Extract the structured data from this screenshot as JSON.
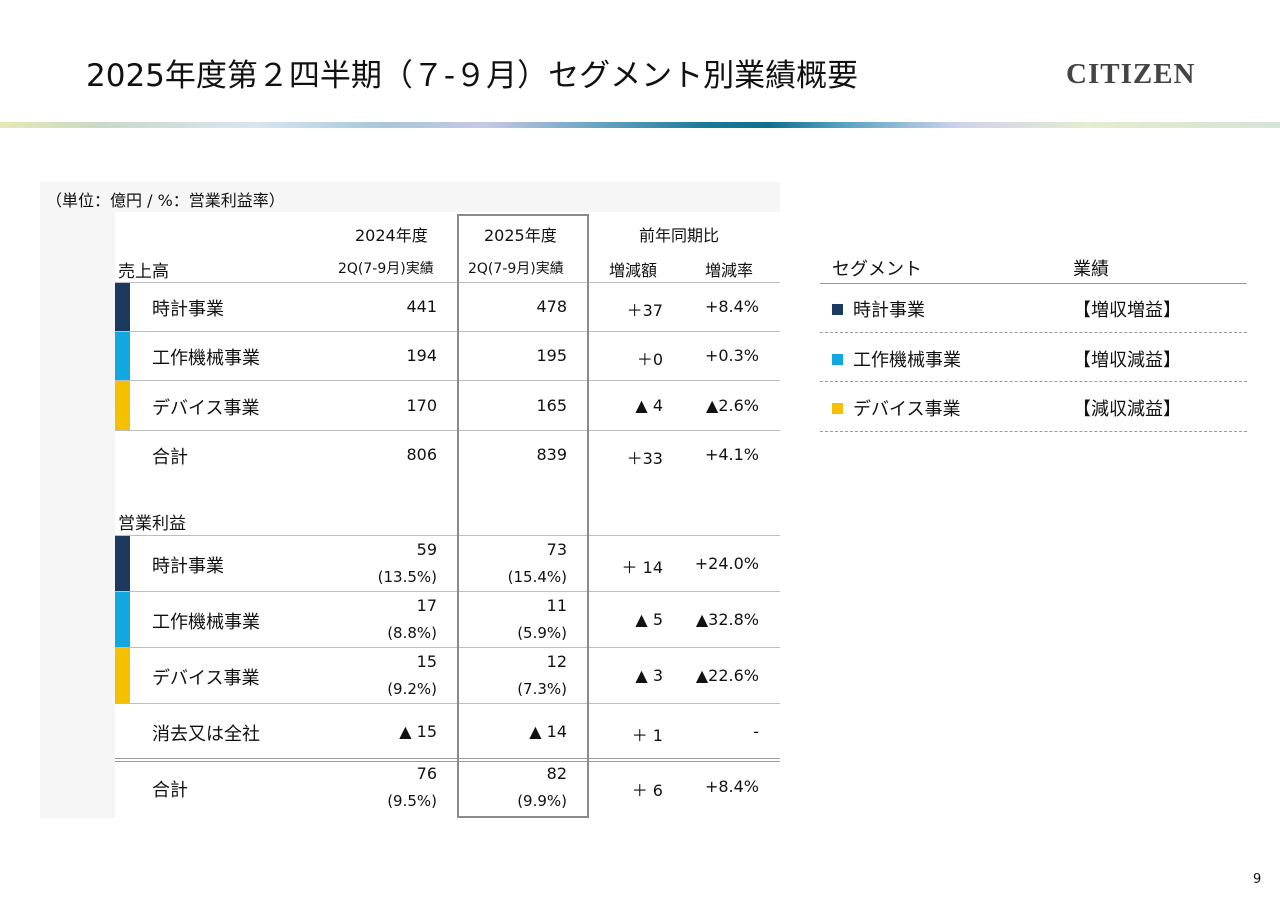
{
  "page": {
    "title": "2025年度第２四半期（７-９月）セグメント別業績概要",
    "logo": "CITIZEN",
    "page_number": "9"
  },
  "colors": {
    "watch": "#1b3a5e",
    "machine": "#10a8df",
    "device": "#f5c000"
  },
  "table": {
    "unit": "（単位：億円 / %：営業利益率）",
    "headers": {
      "fy2024": "2024年度",
      "fy2025": "2025年度",
      "yoy": "前年同期比",
      "fy2024_sub": "2Q(7-9月)実績",
      "fy2025_sub": "2Q(7-9月)実績",
      "diff": "増減額",
      "rate": "増減率"
    },
    "sales_label": "売上高",
    "sales_rows": [
      {
        "name": "時計事業",
        "fy2024": "441",
        "fy2025": "478",
        "diff": "＋37",
        "rate": "+8.4%"
      },
      {
        "name": "工作機械事業",
        "fy2024": "194",
        "fy2025": "195",
        "diff": "＋0",
        "rate": "+0.3%"
      },
      {
        "name": "デバイス事業",
        "fy2024": "170",
        "fy2025": "165",
        "diff": "▲ 4",
        "rate": "▲2.6%"
      },
      {
        "name": "合計",
        "fy2024": "806",
        "fy2025": "839",
        "diff": "＋33",
        "rate": "+4.1%"
      }
    ],
    "op_label": "営業利益",
    "op_rows": [
      {
        "name": "時計事業",
        "fy2024": "59",
        "fy2024_pct": "(13.5%)",
        "fy2025": "73",
        "fy2025_pct": "(15.4%)",
        "diff": "＋ 14",
        "rate": "+24.0%"
      },
      {
        "name": "工作機械事業",
        "fy2024": "17",
        "fy2024_pct": "(8.8%)",
        "fy2025": "11",
        "fy2025_pct": "(5.9%)",
        "diff": "▲ 5",
        "rate": "▲32.8%"
      },
      {
        "name": "デバイス事業",
        "fy2024": "15",
        "fy2024_pct": "(9.2%)",
        "fy2025": "12",
        "fy2025_pct": "(7.3%)",
        "diff": "▲ 3",
        "rate": "▲22.6%"
      },
      {
        "name": "消去又は全社",
        "fy2024": "▲ 15",
        "fy2024_pct": "",
        "fy2025": "▲ 14",
        "fy2025_pct": "",
        "diff": "＋ 1",
        "rate": "-"
      },
      {
        "name": "合計",
        "fy2024": "76",
        "fy2024_pct": "(9.5%)",
        "fy2025": "82",
        "fy2025_pct": "(9.9%)",
        "diff": "＋ 6",
        "rate": "+8.4%"
      }
    ]
  },
  "results": {
    "header_segment": "セグメント",
    "header_result": "業績",
    "rows": [
      {
        "name": "時計事業",
        "result": "【増収増益】"
      },
      {
        "name": "工作機械事業",
        "result": "【増収減益】"
      },
      {
        "name": "デバイス事業",
        "result": "【減収減益】"
      }
    ]
  }
}
